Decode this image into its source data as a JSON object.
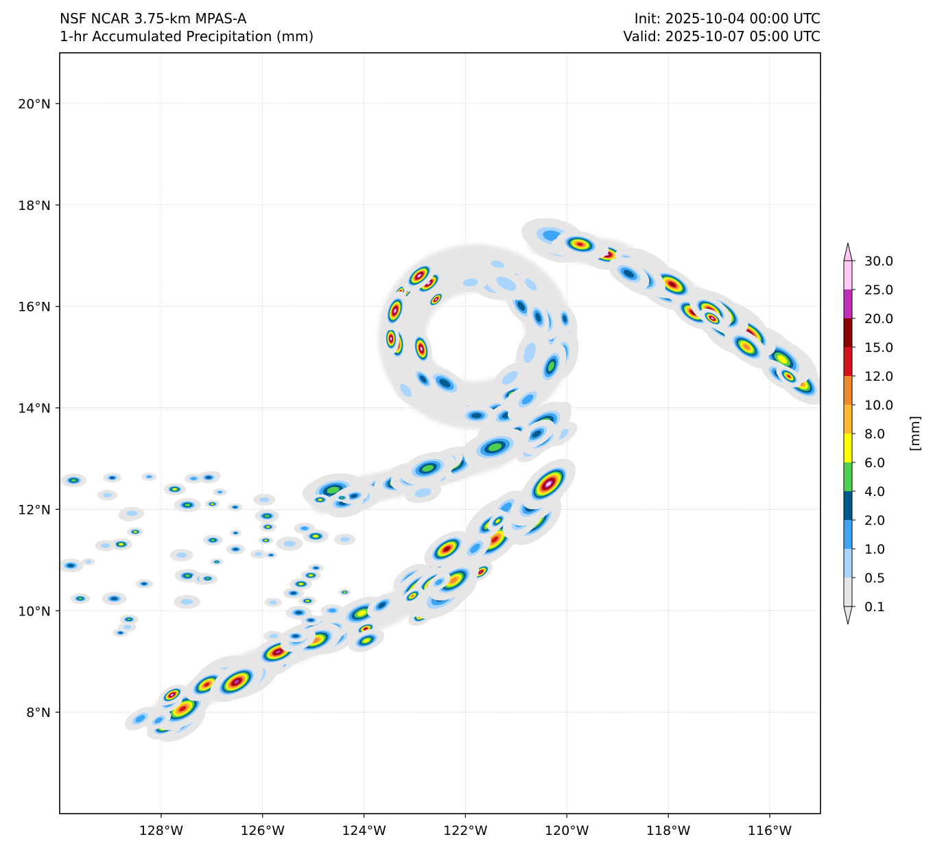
{
  "header": {
    "model": "NSF NCAR 3.75-km MPAS-A",
    "field": "1-hr Accumulated Precipitation (mm)",
    "init": "Init: 2025-10-04 00:00 UTC",
    "valid": "Valid: 2025-10-07 05:00 UTC"
  },
  "map": {
    "lon_range": [
      -130,
      -115
    ],
    "lat_range": [
      6,
      21
    ],
    "lon_ticks": [
      {
        "value": -128,
        "label": "128°W"
      },
      {
        "value": -126,
        "label": "126°W"
      },
      {
        "value": -124,
        "label": "124°W"
      },
      {
        "value": -122,
        "label": "122°W"
      },
      {
        "value": -120,
        "label": "120°W"
      },
      {
        "value": -118,
        "label": "118°W"
      },
      {
        "value": -116,
        "label": "116°W"
      }
    ],
    "lat_ticks": [
      {
        "value": 8,
        "label": "8°N"
      },
      {
        "value": 10,
        "label": "10°N"
      },
      {
        "value": 12,
        "label": "12°N"
      },
      {
        "value": 14,
        "label": "14°N"
      },
      {
        "value": 16,
        "label": "16°N"
      },
      {
        "value": 18,
        "label": "18°N"
      },
      {
        "value": 20,
        "label": "20°N"
      }
    ],
    "features": [
      {
        "name": "storm-circulation",
        "type": "ring",
        "lon": -121.8,
        "lat": 15.4,
        "r_lon": 1.45,
        "r_lat": 1.35
      },
      {
        "name": "northeast-band",
        "type": "band",
        "points": [
          [
            -120.5,
            17.3
          ],
          [
            -119.0,
            17.0
          ],
          [
            -117.8,
            16.3
          ],
          [
            -116.6,
            15.5
          ],
          [
            -115.3,
            14.5
          ]
        ]
      },
      {
        "name": "middle-band",
        "type": "band",
        "points": [
          [
            -124.8,
            12.2
          ],
          [
            -123.0,
            12.6
          ],
          [
            -121.4,
            13.1
          ],
          [
            -120.3,
            13.8
          ]
        ]
      },
      {
        "name": "lower-band",
        "type": "band",
        "points": [
          [
            -128.0,
            7.9
          ],
          [
            -126.5,
            8.8
          ],
          [
            -125.0,
            9.4
          ],
          [
            -123.5,
            10.0
          ],
          [
            -122.0,
            11.0
          ],
          [
            -120.2,
            12.6
          ]
        ]
      }
    ]
  },
  "colorbar": {
    "label": "[mm]",
    "levels": [
      "0.1",
      "0.5",
      "1.0",
      "2.0",
      "4.0",
      "6.0",
      "8.0",
      "10.0",
      "12.0",
      "15.0",
      "20.0",
      "25.0",
      "30.0"
    ],
    "colors": [
      "#e6e6e6",
      "#aad5ff",
      "#3da5f5",
      "#005a8e",
      "#4fcf4f",
      "#ffff00",
      "#ffbb33",
      "#ef8a2e",
      "#d4101a",
      "#8b0000",
      "#c030b8",
      "#ffc8f5"
    ]
  }
}
